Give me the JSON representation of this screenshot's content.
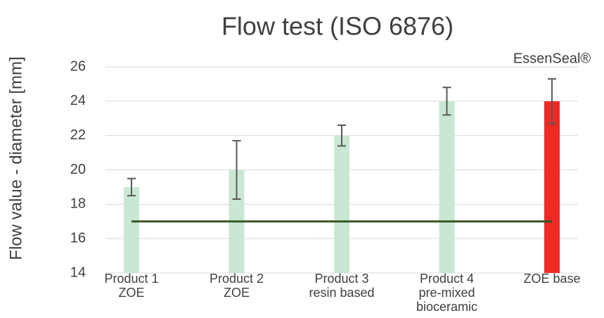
{
  "chart_data": {
    "type": "bar",
    "title": "Flow test (ISO 6876)",
    "ylabel": "Flow value - diameter [mm]",
    "categories": [
      [
        "Product 1",
        "ZOE"
      ],
      [
        "Product 2",
        "ZOE"
      ],
      [
        "Product 3",
        "resin based"
      ],
      [
        "Product 4",
        "pre-mixed",
        "bioceramic"
      ],
      [
        "ZOE base"
      ]
    ],
    "values": [
      19,
      20,
      22,
      24,
      24
    ],
    "errors": [
      0.5,
      1.7,
      0.6,
      0.8,
      1.3
    ],
    "colors": [
      "#c9e8d4",
      "#c9e8d4",
      "#c9e8d4",
      "#c9e8d4",
      "#ee2a24"
    ],
    "reference_line": {
      "value": 17,
      "color": "#375623"
    },
    "annotation": "EssenSeal®",
    "ylim": [
      14,
      26
    ],
    "yticks": [
      14,
      16,
      18,
      20,
      22,
      24,
      26
    ],
    "grid": true
  }
}
